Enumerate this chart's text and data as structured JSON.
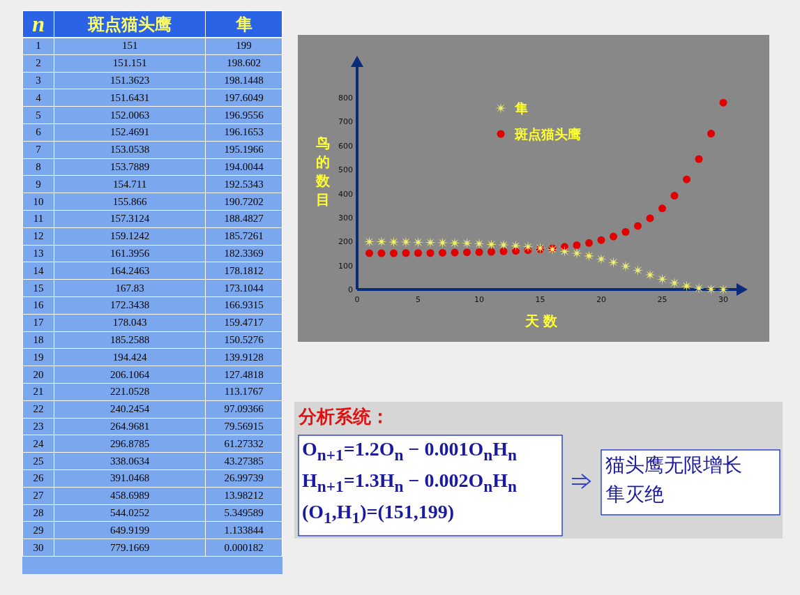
{
  "chart_data": [
    {
      "type": "heatmap",
      "ylabel": "n",
      "data_labels": true,
      "categories": [
        "斑点猫头鹰",
        "隼"
      ],
      "y_categories": [
        "1",
        "2",
        "3",
        "4",
        "5",
        "6",
        "7",
        "8",
        "9",
        "10",
        "11",
        "12",
        "13",
        "14",
        "15",
        "16",
        "17",
        "18",
        "19",
        "20",
        "21",
        "22",
        "23",
        "24",
        "25",
        "26",
        "27",
        "28",
        "29",
        "30"
      ],
      "cells": [
        [
          151,
          199
        ],
        [
          151.151,
          198.602
        ],
        [
          151.3623,
          198.1448
        ],
        [
          151.6431,
          197.6049
        ],
        [
          152.0063,
          196.9556
        ],
        [
          152.4691,
          196.1653
        ],
        [
          153.0538,
          195.1966
        ],
        [
          153.7889,
          194.0044
        ],
        [
          154.711,
          192.5343
        ],
        [
          155.866,
          190.7202
        ],
        [
          157.3124,
          188.4827
        ],
        [
          159.1242,
          185.7261
        ],
        [
          161.3956,
          182.3369
        ],
        [
          164.2463,
          178.1812
        ],
        [
          167.83,
          173.1044
        ],
        [
          172.3438,
          166.9315
        ],
        [
          178.043,
          159.4717
        ],
        [
          185.2588,
          150.5276
        ],
        [
          194.424,
          139.9128
        ],
        [
          206.1064,
          127.4818
        ],
        [
          221.0528,
          113.1767
        ],
        [
          240.2454,
          97.09366
        ],
        [
          264.9681,
          79.56915
        ],
        [
          296.8785,
          61.27332
        ],
        [
          338.0634,
          43.27385
        ],
        [
          391.0468,
          26.99739
        ],
        [
          458.6989,
          13.98212
        ],
        [
          544.0252,
          5.349589
        ],
        [
          649.9199,
          1.133844
        ],
        [
          779.1669,
          0.000182
        ]
      ]
    },
    {
      "type": "scatter",
      "xlabel": "天 数",
      "ylabel": "鸟的数目",
      "x": [
        1,
        2,
        3,
        4,
        5,
        6,
        7,
        8,
        9,
        10,
        11,
        12,
        13,
        14,
        15,
        16,
        17,
        18,
        19,
        20,
        21,
        22,
        23,
        24,
        25,
        26,
        27,
        28,
        29,
        30
      ],
      "xlim": [
        0,
        30
      ],
      "xticks": [
        0,
        5,
        10,
        15,
        20,
        25,
        30
      ],
      "ylim": [
        0,
        800
      ],
      "yticks": [
        0,
        100,
        200,
        300,
        400,
        500,
        600,
        700,
        800
      ],
      "legend": "top left",
      "series": [
        {
          "name": "斑点猫头鹰",
          "color": "#e00000",
          "marker": "circle",
          "values": [
            151,
            151,
            151,
            152,
            152,
            152,
            153,
            154,
            155,
            156,
            157,
            159,
            161,
            164,
            168,
            172,
            178,
            185,
            194,
            206,
            221,
            240,
            265,
            297,
            338,
            391,
            459,
            544,
            650,
            779
          ]
        },
        {
          "name": "隼",
          "color": "#f0f070",
          "marker": "star",
          "values": [
            199,
            199,
            198,
            198,
            197,
            196,
            195,
            194,
            193,
            191,
            188,
            186,
            182,
            178,
            173,
            167,
            159,
            151,
            140,
            127,
            113,
            97,
            80,
            61,
            43,
            27,
            14,
            5,
            1,
            0
          ]
        }
      ],
      "annotations": [
        "分析系统：",
        "O$_{n+1}$=1.2O$_{n}$ − 0.001O$_{n}$H$_{n}$",
        "H$_{n+1}$=1.3H$_{n}$ − 0.002O$_{n}$H$_{n}$",
        "(O$_{1}$,H$_{1}$)=(151,199)",
        "猫头鹰无限增长",
        "隼灭绝"
      ]
    }
  ]
}
